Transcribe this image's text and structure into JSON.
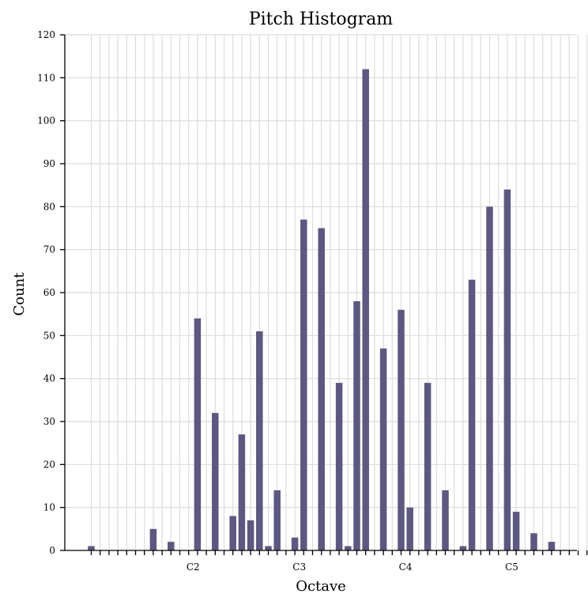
{
  "chart_data": {
    "type": "bar",
    "title": "Pitch Histogram",
    "xlabel": "Octave",
    "ylabel": "Count",
    "ylim": [
      0,
      120
    ],
    "yticks": [
      0,
      10,
      20,
      30,
      40,
      50,
      60,
      70,
      80,
      90,
      100,
      110,
      120
    ],
    "grid": true,
    "pitch_range": [
      24,
      83
    ],
    "octave_tick_labels": [
      {
        "pitch": 36,
        "label": "C2"
      },
      {
        "pitch": 48,
        "label": "C3"
      },
      {
        "pitch": 60,
        "label": "C4"
      },
      {
        "pitch": 72,
        "label": "C5"
      }
    ],
    "bars": [
      {
        "pitch": 24,
        "value": 1
      },
      {
        "pitch": 31,
        "value": 5
      },
      {
        "pitch": 33,
        "value": 2
      },
      {
        "pitch": 36,
        "value": 54
      },
      {
        "pitch": 38,
        "value": 32
      },
      {
        "pitch": 40,
        "value": 8
      },
      {
        "pitch": 41,
        "value": 27
      },
      {
        "pitch": 42,
        "value": 7
      },
      {
        "pitch": 43,
        "value": 51
      },
      {
        "pitch": 44,
        "value": 1
      },
      {
        "pitch": 45,
        "value": 14
      },
      {
        "pitch": 47,
        "value": 3
      },
      {
        "pitch": 48,
        "value": 77
      },
      {
        "pitch": 50,
        "value": 75
      },
      {
        "pitch": 52,
        "value": 39
      },
      {
        "pitch": 53,
        "value": 1
      },
      {
        "pitch": 54,
        "value": 58
      },
      {
        "pitch": 55,
        "value": 112
      },
      {
        "pitch": 57,
        "value": 47
      },
      {
        "pitch": 59,
        "value": 56
      },
      {
        "pitch": 60,
        "value": 10
      },
      {
        "pitch": 62,
        "value": 39
      },
      {
        "pitch": 64,
        "value": 14
      },
      {
        "pitch": 66,
        "value": 1
      },
      {
        "pitch": 67,
        "value": 63
      },
      {
        "pitch": 69,
        "value": 80
      },
      {
        "pitch": 71,
        "value": 84
      },
      {
        "pitch": 72,
        "value": 9
      },
      {
        "pitch": 74,
        "value": 4
      },
      {
        "pitch": 76,
        "value": 2
      }
    ],
    "bar_color": "#5c5880",
    "grid_color": "#dcdcdc"
  }
}
